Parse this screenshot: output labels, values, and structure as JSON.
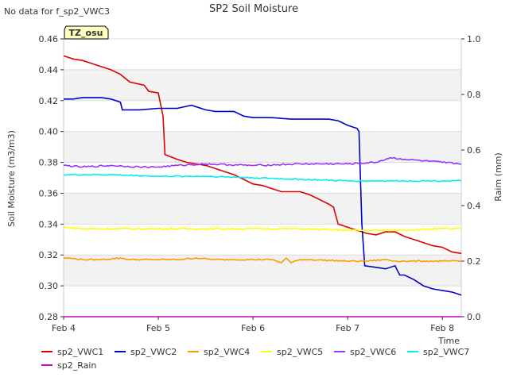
{
  "chart_data": {
    "type": "line",
    "title": "SP2 Soil Moisture",
    "note": "No data for f_sp2_VWC3",
    "badge": "TZ_osu",
    "xlabel": "Time",
    "ylabel": "Soil Moisture (m3/m3)",
    "y2label": "Raim (mm)",
    "xlim": [
      4.0,
      8.2
    ],
    "ylim": [
      0.28,
      0.46
    ],
    "y2lim": [
      0.0,
      1.0
    ],
    "x_ticks": [
      {
        "value": 4,
        "label": "Feb 4"
      },
      {
        "value": 5,
        "label": "Feb 5"
      },
      {
        "value": 6,
        "label": "Feb 6"
      },
      {
        "value": 7,
        "label": "Feb 7"
      },
      {
        "value": 8,
        "label": "Feb 8"
      }
    ],
    "y_ticks": [
      "0.28",
      "0.30",
      "0.32",
      "0.34",
      "0.36",
      "0.38",
      "0.40",
      "0.42",
      "0.44",
      "0.46"
    ],
    "y2_ticks": [
      "0.0",
      "0.2",
      "0.4",
      "0.6",
      "0.8",
      "1.0"
    ],
    "series": [
      {
        "name": "sp2_VWC1",
        "color": "#dd0000",
        "axis": "left",
        "x": [
          4.0,
          4.1,
          4.2,
          4.3,
          4.4,
          4.5,
          4.6,
          4.7,
          4.85,
          4.9,
          5.0,
          5.05,
          5.07,
          5.2,
          5.3,
          5.4,
          5.5,
          5.6,
          5.7,
          5.8,
          5.9,
          6.0,
          6.1,
          6.2,
          6.3,
          6.5,
          6.6,
          6.7,
          6.8,
          6.85,
          6.9,
          7.0,
          7.1,
          7.2,
          7.3,
          7.4,
          7.5,
          7.6,
          7.7,
          7.8,
          7.9,
          8.0,
          8.1,
          8.2
        ],
        "y": [
          0.449,
          0.447,
          0.446,
          0.444,
          0.442,
          0.44,
          0.437,
          0.432,
          0.43,
          0.426,
          0.425,
          0.41,
          0.385,
          0.382,
          0.38,
          0.379,
          0.378,
          0.376,
          0.374,
          0.372,
          0.369,
          0.366,
          0.365,
          0.363,
          0.361,
          0.361,
          0.359,
          0.356,
          0.353,
          0.351,
          0.34,
          0.338,
          0.336,
          0.334,
          0.333,
          0.335,
          0.335,
          0.332,
          0.33,
          0.328,
          0.326,
          0.325,
          0.322,
          0.321
        ]
      },
      {
        "name": "sp2_VWC2",
        "color": "#0000cc",
        "axis": "left",
        "x": [
          4.0,
          4.1,
          4.2,
          4.3,
          4.4,
          4.5,
          4.6,
          4.62,
          4.8,
          5.0,
          5.2,
          5.35,
          5.5,
          5.6,
          5.8,
          5.9,
          6.0,
          6.2,
          6.4,
          6.6,
          6.8,
          6.9,
          7.0,
          7.1,
          7.12,
          7.15,
          7.18,
          7.3,
          7.4,
          7.5,
          7.55,
          7.6,
          7.7,
          7.8,
          7.9,
          8.0,
          8.1,
          8.2
        ],
        "y": [
          0.421,
          0.421,
          0.422,
          0.422,
          0.422,
          0.421,
          0.419,
          0.414,
          0.414,
          0.415,
          0.415,
          0.417,
          0.414,
          0.413,
          0.413,
          0.41,
          0.409,
          0.409,
          0.408,
          0.408,
          0.408,
          0.407,
          0.404,
          0.402,
          0.4,
          0.34,
          0.313,
          0.312,
          0.311,
          0.313,
          0.307,
          0.307,
          0.304,
          0.3,
          0.298,
          0.297,
          0.296,
          0.294
        ]
      },
      {
        "name": "sp2_VWC4",
        "color": "#ff9900",
        "axis": "left",
        "x": [
          4.0,
          4.05,
          4.2,
          4.4,
          4.6,
          4.7,
          5.0,
          5.2,
          5.4,
          5.6,
          5.8,
          6.0,
          6.2,
          6.3,
          6.35,
          6.4,
          6.5,
          6.6,
          7.0,
          7.2,
          7.4,
          7.5,
          7.6,
          7.8,
          8.0,
          8.2
        ],
        "y": [
          0.318,
          0.318,
          0.317,
          0.317,
          0.318,
          0.317,
          0.317,
          0.317,
          0.318,
          0.317,
          0.317,
          0.317,
          0.317,
          0.315,
          0.318,
          0.315,
          0.317,
          0.317,
          0.316,
          0.316,
          0.317,
          0.316,
          0.316,
          0.316,
          0.316,
          0.316
        ],
        "noise": 0.0004
      },
      {
        "name": "sp2_VWC5",
        "color": "#ffff00",
        "axis": "left",
        "x": [
          4.0,
          4.2,
          4.5,
          5.0,
          5.5,
          6.0,
          6.5,
          7.0,
          7.5,
          8.0,
          8.2
        ],
        "y": [
          0.338,
          0.337,
          0.337,
          0.337,
          0.337,
          0.337,
          0.337,
          0.336,
          0.336,
          0.337,
          0.337
        ],
        "noise": 0.0005
      },
      {
        "name": "sp2_VWC6",
        "color": "#9933ff",
        "axis": "left",
        "x": [
          4.0,
          4.2,
          4.5,
          4.8,
          5.0,
          5.2,
          5.5,
          6.0,
          6.5,
          7.0,
          7.3,
          7.45,
          7.6,
          7.8,
          8.0,
          8.2
        ],
        "y": [
          0.378,
          0.377,
          0.378,
          0.377,
          0.377,
          0.378,
          0.379,
          0.378,
          0.379,
          0.379,
          0.38,
          0.383,
          0.382,
          0.381,
          0.38,
          0.379
        ],
        "noise": 0.0005
      },
      {
        "name": "sp2_VWC7",
        "color": "#00eeee",
        "axis": "left",
        "x": [
          4.0,
          4.2,
          4.5,
          5.0,
          5.5,
          6.0,
          6.5,
          7.0,
          7.5,
          8.0,
          8.2
        ],
        "y": [
          0.372,
          0.372,
          0.372,
          0.371,
          0.371,
          0.37,
          0.369,
          0.368,
          0.368,
          0.368,
          0.368
        ],
        "noise": 0.0004
      },
      {
        "name": "sp2_Rain",
        "color": "#cc00cc",
        "axis": "right",
        "x": [
          4.0,
          8.2
        ],
        "y": [
          0.0,
          0.0
        ]
      }
    ],
    "legend_placement": "bottom"
  }
}
